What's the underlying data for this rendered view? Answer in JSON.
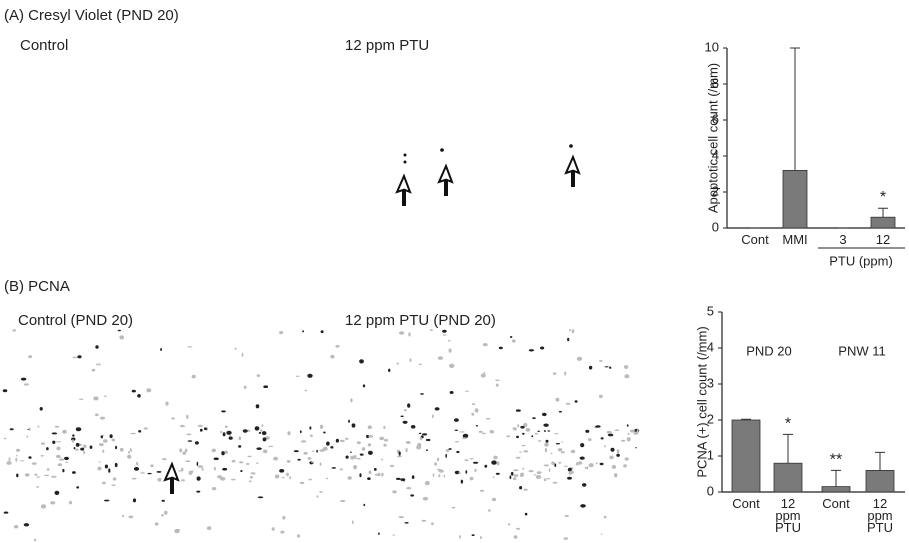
{
  "figure": {
    "panel_a_title": "(A) Cresyl Violet (PND 20)",
    "panel_a_left": "Control",
    "panel_a_right": "12 ppm PTU",
    "panel_b_title": "(B) PCNA",
    "panel_b_left": "Control (PND 20)",
    "panel_b_right": "12 ppm PTU (PND 20)"
  },
  "chart_data": [
    {
      "type": "bar",
      "y_label": "Apoptotic cell count (/mm)",
      "categories": [
        "Cont",
        "MMI",
        "3",
        "12"
      ],
      "values": [
        0,
        3.2,
        0,
        0.6
      ],
      "errors": [
        0,
        6.8,
        0,
        0.5
      ],
      "significance": [
        null,
        null,
        null,
        "*"
      ],
      "group_labels": [
        "PTU (ppm)"
      ],
      "color": "#7a7a7a",
      "ylim": [
        0,
        10
      ],
      "yticks": [
        0,
        2,
        4,
        6,
        8,
        10
      ]
    },
    {
      "type": "bar",
      "y_label": "PCNA (+) cell count (/mm)",
      "categories": [
        "Cont",
        "12 ppm PTU",
        "Cont",
        "12 ppm PTU"
      ],
      "values": [
        2.0,
        0.8,
        0.15,
        0.6
      ],
      "errors": [
        0.02,
        0.8,
        0.45,
        0.5
      ],
      "significance": [
        null,
        "*",
        "**",
        null
      ],
      "group_labels": [
        "PND 20",
        "PNW 11"
      ],
      "color": "#7a7a7a",
      "ylim": [
        0,
        5
      ],
      "yticks": [
        0,
        1,
        2,
        3,
        4,
        5
      ]
    }
  ]
}
